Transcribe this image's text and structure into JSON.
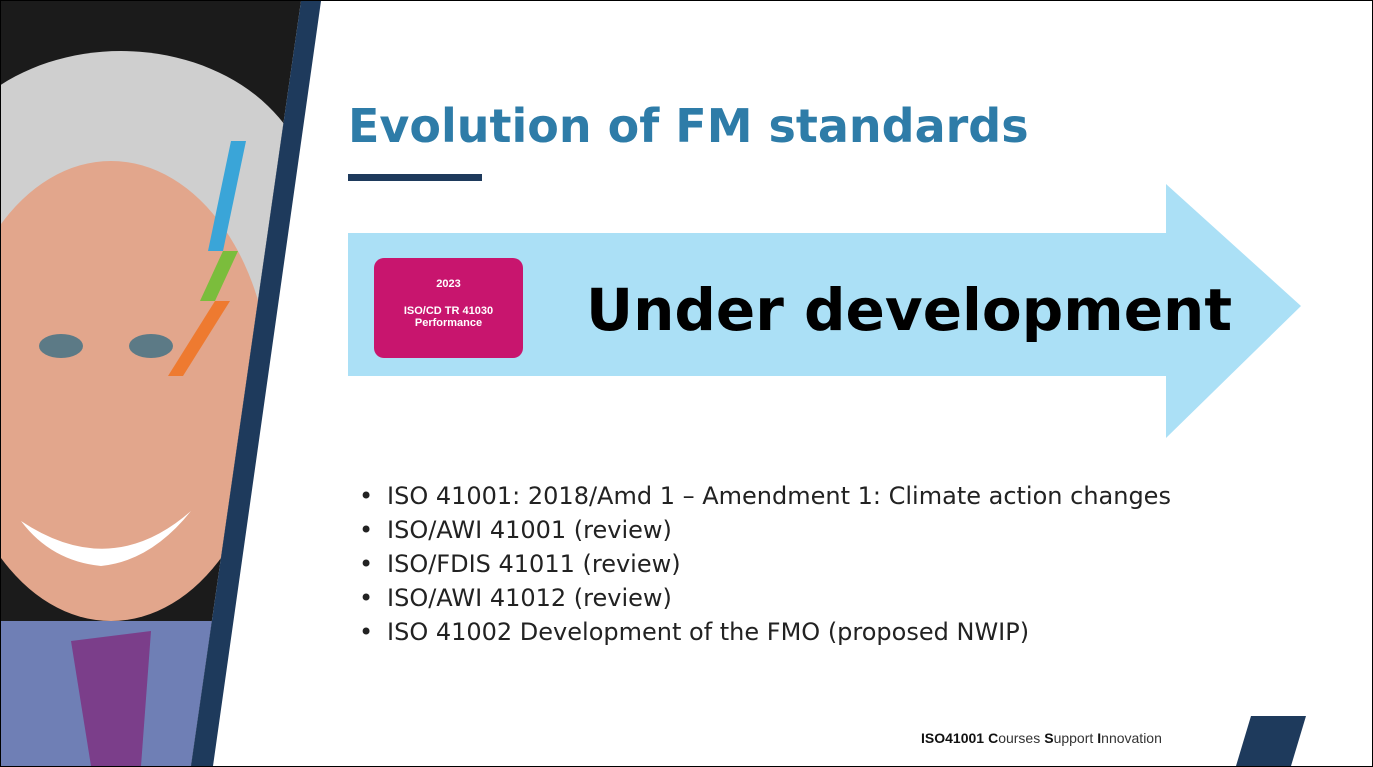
{
  "title": "Evolution of FM standards",
  "badge": {
    "year": "2023",
    "code": "ISO/CD TR 41030",
    "label": "Performance"
  },
  "arrow_text": "Under development",
  "bullets": [
    "ISO 41001: 2018/Amd 1 – Amendment 1: Climate action changes",
    "ISO/AWI 41001 (review)",
    "ISO/FDIS 41011 (review)",
    "ISO/AWI 41012 (review)",
    "ISO 41002 Development of the FMO (proposed NWIP)"
  ],
  "footer": {
    "brand": "ISO41001",
    "words": [
      {
        "initial": "C",
        "rest": "ourses"
      },
      {
        "initial": "S",
        "rest": "upport"
      },
      {
        "initial": "I",
        "rest": "nnovation"
      }
    ]
  }
}
